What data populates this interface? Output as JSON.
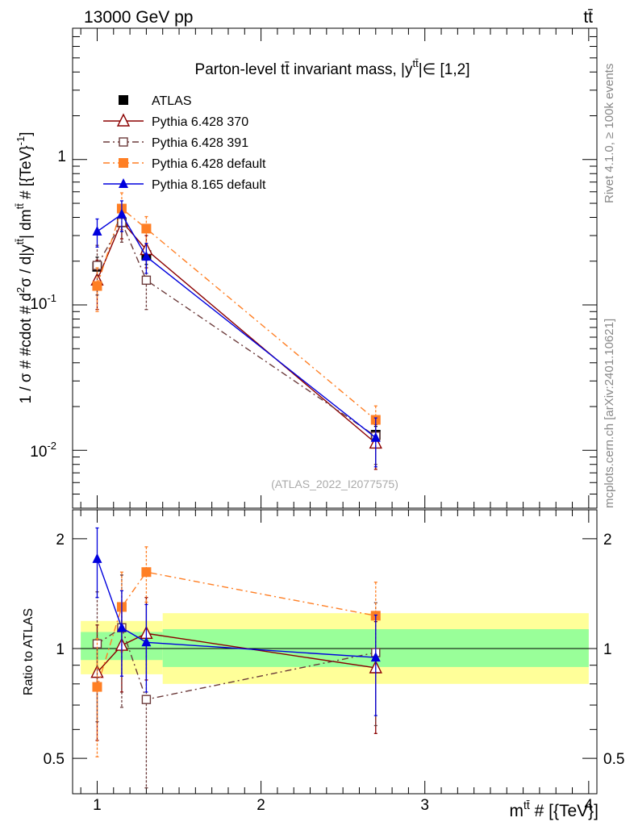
{
  "header": {
    "energy_label": "13000 GeV pp",
    "process_label": "tt̄"
  },
  "side_labels": {
    "rivet": "Rivet 4.1.0, ≥ 100k events",
    "source": "mcplots.cern.ch [arXiv:2401.10621]"
  },
  "chart_data": [
    {
      "type": "line",
      "title": "Parton-level tt̄ invariant mass, |y^{tt̄}|∈ [1,2]",
      "title_main": "Parton-level tt̄ invariant mass, |y",
      "title_sup": "tt̄",
      "title_tail": "|∈ [1,2]",
      "ylabel": "1 / σ # #cdot # d²σ / d|y^{tt̄}| dm^{tt̄} # [{TeV}⁻¹]",
      "ylabel_parts": [
        "1 / σ # #cdot # d",
        "2",
        "σ / d|y",
        "tt̄",
        "| dm",
        "tt̄",
        " # [{TeV}",
        "-1",
        "]"
      ],
      "yscale": "log",
      "ylim": [
        0.004,
        8
      ],
      "xlim": [
        0.85,
        4.05
      ],
      "ytick_labels": [
        "10",
        "-2",
        "10",
        "-1",
        "1"
      ],
      "ytick_values": [
        0.01,
        0.1,
        1
      ],
      "watermark": "(ATLAS_2022_I2077575)",
      "legend_position": "top-left",
      "series": [
        {
          "name": "ATLAS",
          "color": "#000000",
          "marker": "filled-square",
          "x": [
            1.0,
            1.15,
            1.3,
            2.7
          ],
          "y": [
            0.183,
            0.37,
            0.22,
            0.0128
          ],
          "yerr": [
            0.03,
            0.05,
            0.03,
            0.0018
          ]
        },
        {
          "name": "Pythia 6.428 370",
          "color": "#8b0000",
          "marker": "open-triangle",
          "line": "solid",
          "x": [
            1.0,
            1.15,
            1.3,
            2.7
          ],
          "y": [
            0.148,
            0.375,
            0.24,
            0.0112
          ],
          "yerr": [
            0.055,
            0.09,
            0.06,
            0.0038
          ]
        },
        {
          "name": "Pythia 6.428 391",
          "color": "#6b3a3a",
          "marker": "open-square",
          "line": "dashdot",
          "x": [
            1.0,
            1.15,
            1.3,
            2.7
          ],
          "y": [
            0.187,
            0.37,
            0.148,
            0.0125
          ],
          "yerr": [
            0.07,
            0.1,
            0.055,
            0.0045
          ]
        },
        {
          "name": "Pythia 6.428 default",
          "color": "#ff7f24",
          "marker": "filled-square",
          "line": "dashdot",
          "x": [
            1.0,
            1.15,
            1.3,
            2.7
          ],
          "y": [
            0.135,
            0.46,
            0.335,
            0.0162
          ],
          "yerr": [
            0.045,
            0.13,
            0.07,
            0.004
          ]
        },
        {
          "name": "Pythia 8.165 default",
          "color": "#0000dd",
          "marker": "filled-triangle",
          "line": "solid",
          "x": [
            1.0,
            1.15,
            1.3,
            2.7
          ],
          "y": [
            0.32,
            0.42,
            0.215,
            0.0122
          ],
          "yerr": [
            0.07,
            0.1,
            0.05,
            0.0045
          ]
        }
      ]
    },
    {
      "type": "line",
      "ylabel": "Ratio to ATLAS",
      "xlabel": "m^{tt̄} # [{TeV}]",
      "xlabel_main": "m",
      "xlabel_sup": "tt̄",
      "xlabel_tail": " # [{TeV}]",
      "yscale": "log",
      "ylim": [
        0.4,
        2.4
      ],
      "xlim": [
        0.85,
        4.05
      ],
      "ytick_labels": [
        "0.5",
        "1",
        "2"
      ],
      "ytick_values": [
        0.5,
        1,
        2
      ],
      "xtick_labels": [
        "1",
        "2",
        "3",
        "4"
      ],
      "xtick_values": [
        1,
        2,
        3,
        4
      ],
      "bands": {
        "edges": [
          0.9,
          1.4,
          4.0
        ],
        "inner": [
          [
            0.93,
            1.11
          ],
          [
            0.89,
            1.13
          ]
        ],
        "outer": [
          [
            0.85,
            1.19
          ],
          [
            0.8,
            1.25
          ]
        ],
        "inner_color": "#99ff99",
        "outer_color": "#ffff99"
      },
      "series": [
        {
          "name": "Pythia 6.428 370",
          "color": "#8b0000",
          "marker": "open-triangle",
          "line": "solid",
          "x": [
            1.0,
            1.15,
            1.3,
            2.7
          ],
          "y": [
            0.86,
            1.02,
            1.1,
            0.885
          ],
          "yerr": [
            0.3,
            0.26,
            0.28,
            0.3
          ]
        },
        {
          "name": "Pythia 6.428 391",
          "color": "#6b3a3a",
          "marker": "open-square",
          "line": "dashdot",
          "x": [
            1.0,
            1.15,
            1.3,
            2.7
          ],
          "y": [
            1.03,
            1.14,
            0.725,
            0.975
          ],
          "yerr": [
            0.4,
            0.45,
            0.31,
            0.36
          ]
        },
        {
          "name": "Pythia 6.428 default",
          "color": "#ff7f24",
          "marker": "filled-square",
          "line": "dashdot",
          "x": [
            1.0,
            1.15,
            1.3,
            2.7
          ],
          "y": [
            0.785,
            1.3,
            1.62,
            1.23
          ],
          "yerr": [
            0.28,
            0.32,
            0.28,
            0.29
          ]
        },
        {
          "name": "Pythia 8.165 default",
          "color": "#0000dd",
          "marker": "filled-triangle",
          "line": "solid",
          "x": [
            1.0,
            1.15,
            1.3,
            2.7
          ],
          "y": [
            1.76,
            1.14,
            1.04,
            0.945
          ],
          "yerr": [
            0.38,
            0.3,
            0.28,
            0.29
          ]
        }
      ]
    }
  ]
}
